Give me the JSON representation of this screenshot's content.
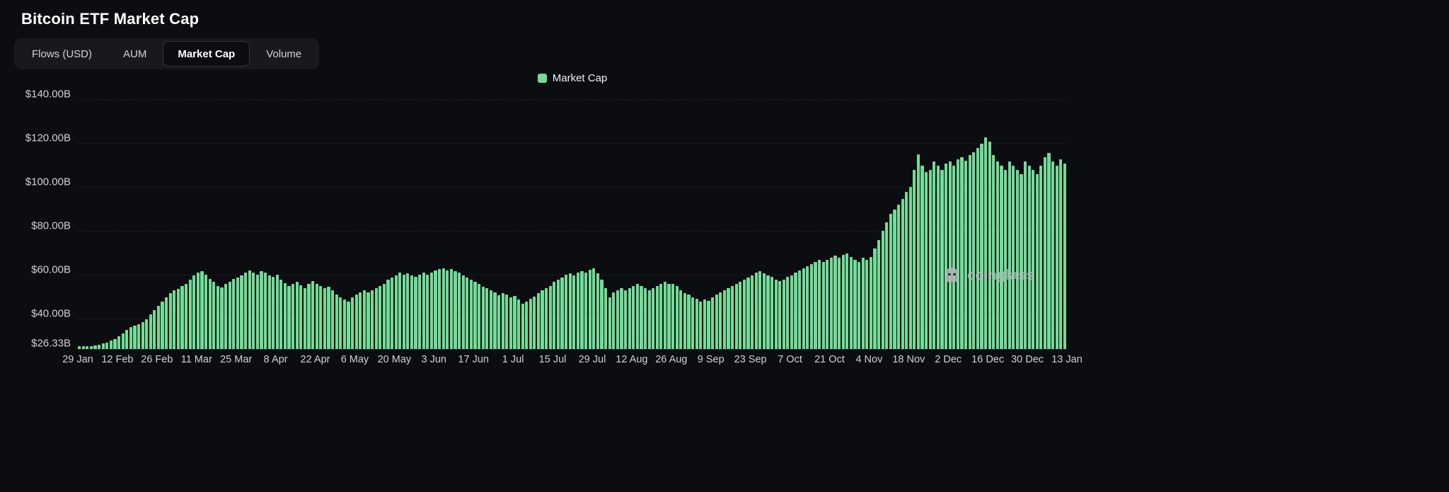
{
  "header": {
    "title": "Bitcoin ETF Market Cap"
  },
  "tabs": [
    {
      "label": "Flows (USD)",
      "active": false
    },
    {
      "label": "AUM",
      "active": false
    },
    {
      "label": "Market Cap",
      "active": true
    },
    {
      "label": "Volume",
      "active": false
    }
  ],
  "legend": {
    "label": "Market Cap",
    "color": "#73db97"
  },
  "watermark": {
    "label": "coinglass"
  },
  "chart_data": {
    "type": "bar",
    "title": "Bitcoin ETF Market Cap",
    "series_name": "Market Cap",
    "bar_color": "#73db97",
    "grid": "horizontal-dashed",
    "legend_position": "top-center",
    "ylim": [
      26.33,
      144
    ],
    "y_tick_values": [
      140,
      120,
      100,
      80,
      60,
      40,
      26.33
    ],
    "y_tick_labels": [
      "$140.00B",
      "$120.00B",
      "$100.00B",
      "$80.00B",
      "$60.00B",
      "$40.00B",
      "$26.33B"
    ],
    "x_tick_labels": [
      "29 Jan",
      "12 Feb",
      "26 Feb",
      "11 Mar",
      "25 Mar",
      "8 Apr",
      "22 Apr",
      "6 May",
      "20 May",
      "3 Jun",
      "17 Jun",
      "1 Jul",
      "15 Jul",
      "29 Jul",
      "12 Aug",
      "26 Aug",
      "9 Sep",
      "23 Sep",
      "7 Oct",
      "21 Oct",
      "4 Nov",
      "18 Nov",
      "2 Dec",
      "16 Dec",
      "30 Dec",
      "13 Jan"
    ],
    "values": [
      26.3,
      26.7,
      27.1,
      27.4,
      27.8,
      28.2,
      28.8,
      29.4,
      30.1,
      31.0,
      32.2,
      33.6,
      35.0,
      36.3,
      37.0,
      37.6,
      38.6,
      40.1,
      42.2,
      44.3,
      46.0,
      48.2,
      50.1,
      52.0,
      53.2,
      54.0,
      55.1,
      56.3,
      58.0,
      60.2,
      61.5,
      62.0,
      60.3,
      58.4,
      57.2,
      55.3,
      54.6,
      56.0,
      57.1,
      58.3,
      59.2,
      60.1,
      61.4,
      62.3,
      61.2,
      60.4,
      62.0,
      61.3,
      60.2,
      59.4,
      60.3,
      58.2,
      56.4,
      55.2,
      56.1,
      57.0,
      55.4,
      54.3,
      56.2,
      57.3,
      56.2,
      55.1,
      54.2,
      55.0,
      53.1,
      51.2,
      50.0,
      49.1,
      48.2,
      50.0,
      51.2,
      52.3,
      53.1,
      52.4,
      53.3,
      54.2,
      55.1,
      56.3,
      58.0,
      59.1,
      60.0,
      61.2,
      60.3,
      61.1,
      60.2,
      59.3,
      60.4,
      61.2,
      60.3,
      61.4,
      62.3,
      63.1,
      63.4,
      62.2,
      63.0,
      62.1,
      61.2,
      60.1,
      59.2,
      58.1,
      57.2,
      56.1,
      55.0,
      54.2,
      53.1,
      52.2,
      51.1,
      52.0,
      51.2,
      50.1,
      50.8,
      49.0,
      47.2,
      48.1,
      49.2,
      50.3,
      52.1,
      53.2,
      54.1,
      55.3,
      57.0,
      58.2,
      59.1,
      60.3,
      61.0,
      60.2,
      61.3,
      62.1,
      61.4,
      62.6,
      63.2,
      61.0,
      58.1,
      54.2,
      50.1,
      52.2,
      53.1,
      54.3,
      53.2,
      54.1,
      55.2,
      56.1,
      55.3,
      54.2,
      53.4,
      54.1,
      55.2,
      56.3,
      57.1,
      56.2,
      56.0,
      55.2,
      53.4,
      52.1,
      51.2,
      50.1,
      49.2,
      48.1,
      49.0,
      48.3,
      50.1,
      51.2,
      52.3,
      53.1,
      54.2,
      55.3,
      56.1,
      57.2,
      58.1,
      59.2,
      60.1,
      61.2,
      62.0,
      61.1,
      60.2,
      59.3,
      58.2,
      57.3,
      58.1,
      59.4,
      60.2,
      61.3,
      62.4,
      63.2,
      64.1,
      65.3,
      66.2,
      67.1,
      66.3,
      67.2,
      68.1,
      69.2,
      68.3,
      69.4,
      70.2,
      68.4,
      67.2,
      66.1,
      68.2,
      67.3,
      68.5,
      72.3,
      76.2,
      80.4,
      84.2,
      88.3,
      90.1,
      92.4,
      95.2,
      98.3,
      100.5,
      108.2,
      115.4,
      110.2,
      107.3,
      108.4,
      112.2,
      110.3,
      108.2,
      111.4,
      112.3,
      110.4,
      113.2,
      114.3,
      112.4,
      115.2,
      116.4,
      118.3,
      120.2,
      123.4,
      121.2,
      115.3,
      112.1,
      110.4,
      108.2,
      112.3,
      110.2,
      108.4,
      106.3,
      112.2,
      110.3,
      108.2,
      106.4,
      110.2,
      114.3,
      116.2,
      112.3,
      110.4,
      113.2,
      111.3
    ]
  }
}
